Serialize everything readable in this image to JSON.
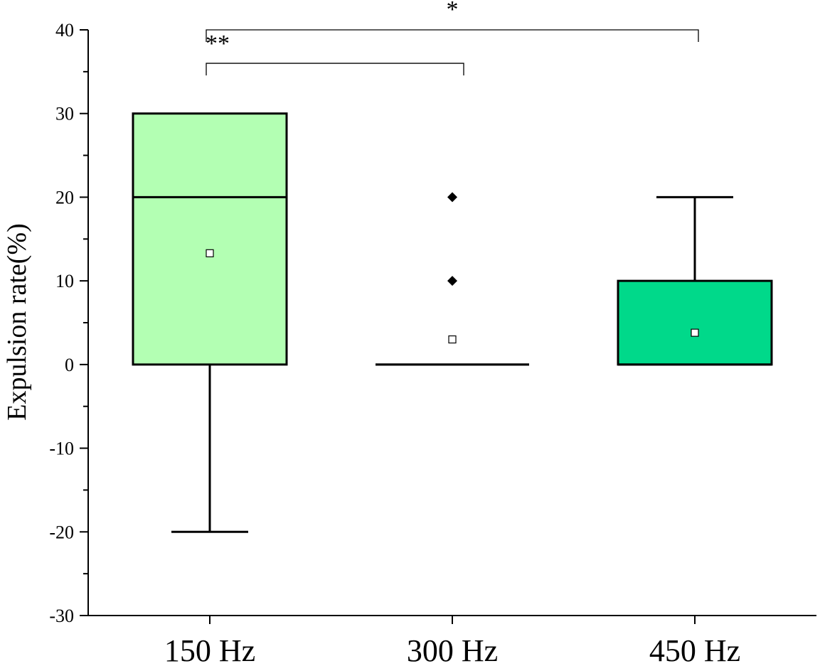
{
  "chart_data": {
    "type": "box",
    "ylabel": "Expulsion rate(%)",
    "xlabel": "",
    "ylim": [
      -30,
      40
    ],
    "yticks": [
      -30,
      -20,
      -10,
      0,
      10,
      20,
      30,
      40
    ],
    "grid": false,
    "categories": [
      "150 Hz",
      "300 Hz",
      "450 Hz"
    ],
    "boxes": [
      {
        "category": "150 Hz",
        "whisker_low": -20,
        "q1": 0,
        "median": 20,
        "q3": 30,
        "whisker_high": 30,
        "mean": 13.3,
        "outliers": [],
        "color": "#b3ffb3"
      },
      {
        "category": "300 Hz",
        "whisker_low": 0,
        "q1": 0,
        "median": 0,
        "q3": 0,
        "whisker_high": 0,
        "mean": 3.0,
        "outliers": [
          10,
          20
        ],
        "color": "#ffffff"
      },
      {
        "category": "450 Hz",
        "whisker_low": 0,
        "q1": 0,
        "median": 0,
        "q3": 10,
        "whisker_high": 20,
        "mean": 3.8,
        "outliers": [],
        "color": "#00d98a"
      }
    ],
    "significance": [
      {
        "from": "150 Hz",
        "to": "450 Hz",
        "label": "*",
        "y": 40
      },
      {
        "from": "150 Hz",
        "to": "300 Hz",
        "label": "**",
        "y": 36
      }
    ]
  }
}
